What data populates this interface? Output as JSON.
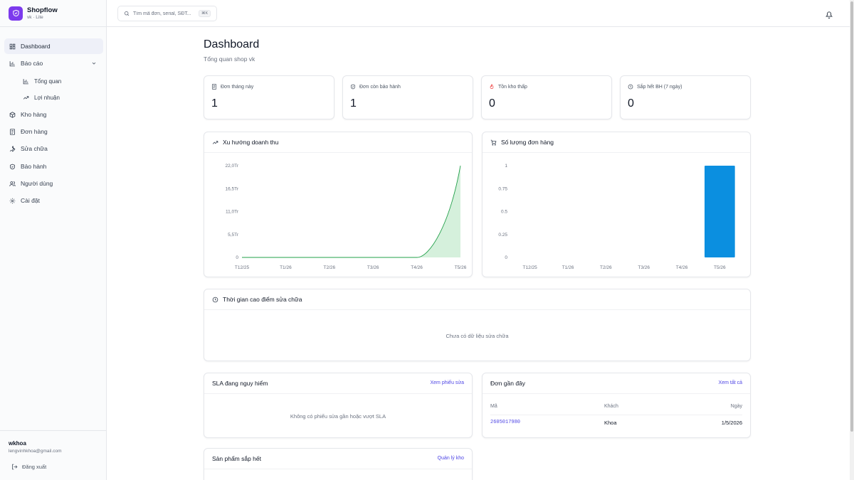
{
  "brand": {
    "name": "Shopflow",
    "sub": "vk · Lite"
  },
  "sidebar": {
    "items": [
      {
        "label": "Dashboard"
      },
      {
        "label": "Báo cáo"
      },
      {
        "label": "Tổng quan"
      },
      {
        "label": "Lợi nhuận"
      },
      {
        "label": "Kho hàng"
      },
      {
        "label": "Đơn hàng"
      },
      {
        "label": "Sửa chữa"
      },
      {
        "label": "Bảo hành"
      },
      {
        "label": "Người dùng"
      },
      {
        "label": "Cài đặt"
      }
    ],
    "user": {
      "name": "wkhoa",
      "email": "lengvinhkhoa@gmail.com"
    },
    "logout": "Đăng xuất"
  },
  "topbar": {
    "search_placeholder": "Tìm mã đơn, serial, SĐT...",
    "shortcut": "⌘K"
  },
  "main": {
    "title": "Dashboard",
    "subtitle": "Tổng quan shop vk",
    "stats": [
      {
        "label": "Đơn tháng này",
        "value": "1"
      },
      {
        "label": "Đơn còn bảo hành",
        "value": "1"
      },
      {
        "label": "Tồn kho thấp",
        "value": "0"
      },
      {
        "label": "Sắp hết BH (7 ngày)",
        "value": "0"
      }
    ],
    "revenue_title": "Xu hướng doanh thu",
    "orders_title": "Số lượng đơn hàng",
    "repair_peak": {
      "title": "Thời gian cao điểm sửa chữa",
      "empty": "Chưa có dữ liệu sửa chữa"
    },
    "sla": {
      "title": "SLA đang nguy hiểm",
      "link": "Xem phiếu sửa",
      "empty": "Không có phiếu sửa gần hoặc vượt SLA"
    },
    "recent_orders": {
      "title": "Đơn gần đây",
      "link": "Xem tất cả",
      "columns": [
        "Mã",
        "Khách",
        "Ngày"
      ],
      "rows": [
        {
          "code": "2605017980",
          "customer": "Khoa",
          "date": "1/5/2026"
        }
      ]
    },
    "low_stock": {
      "title": "Sản phẩm sắp hết",
      "link": "Quản lý kho"
    }
  },
  "colors": {
    "accent": "#7c3aed",
    "revenue_line": "#22a04a",
    "bar": "#0b8fe0"
  },
  "chart_data": [
    {
      "type": "area",
      "categories": [
        "T12/25",
        "T1/26",
        "T2/26",
        "T3/26",
        "T4/26",
        "T5/26"
      ],
      "series": [
        {
          "values": [
            0,
            0,
            0,
            0,
            0,
            22.0
          ]
        }
      ],
      "y_ticks": [
        "0",
        "5,5Tr",
        "11,0Tr",
        "16,5Tr",
        "22,0Tr"
      ],
      "ylim": [
        0,
        22.0
      ],
      "grid": false
    },
    {
      "type": "bar",
      "categories": [
        "T12/25",
        "T1/26",
        "T2/26",
        "T3/26",
        "T4/26",
        "T5/26"
      ],
      "values": [
        0,
        0,
        0,
        0,
        0,
        1
      ],
      "y_ticks": [
        "0",
        "0.25",
        "0.5",
        "0.75",
        "1"
      ],
      "ylim": [
        0,
        1
      ],
      "grid": false
    }
  ]
}
